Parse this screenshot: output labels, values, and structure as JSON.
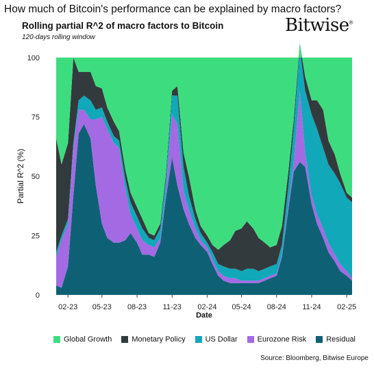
{
  "header": {
    "question": "How much of Bitcoin's performance can be explained by macro factors?",
    "brand": "Bitwise",
    "brand_mark": "®"
  },
  "source": "Source: Bloomberg, Bitwise Europe",
  "chart_data": {
    "type": "area",
    "stacked": true,
    "title": "Rolling partial R^2 of macro factors to Bitcoin",
    "subtitle": "120-days rolling window",
    "xlabel": "Date",
    "ylabel": "Partial R^2 (%)",
    "ylim": [
      0,
      100
    ],
    "yticks": [
      0,
      25,
      50,
      75,
      100
    ],
    "xticks": [
      "02-23",
      "05-23",
      "08-23",
      "11-23",
      "02-24",
      "05-24",
      "08-24",
      "11-24",
      "02-25"
    ],
    "grid": true,
    "legend_position": "bottom",
    "x": [
      "2023-01-01",
      "2023-01-15",
      "2023-02-01",
      "2023-02-15",
      "2023-03-01",
      "2023-03-15",
      "2023-04-01",
      "2023-04-15",
      "2023-05-01",
      "2023-05-15",
      "2023-06-01",
      "2023-06-15",
      "2023-07-01",
      "2023-07-15",
      "2023-08-01",
      "2023-08-15",
      "2023-09-01",
      "2023-09-15",
      "2023-10-01",
      "2023-10-15",
      "2023-11-01",
      "2023-11-15",
      "2023-12-01",
      "2023-12-15",
      "2024-01-01",
      "2024-01-15",
      "2024-02-01",
      "2024-02-15",
      "2024-03-01",
      "2024-03-15",
      "2024-04-01",
      "2024-04-15",
      "2024-05-01",
      "2024-05-15",
      "2024-06-01",
      "2024-06-15",
      "2024-07-01",
      "2024-07-15",
      "2024-08-01",
      "2024-08-15",
      "2024-09-01",
      "2024-09-15",
      "2024-10-01",
      "2024-10-15",
      "2024-11-01",
      "2024-11-15",
      "2024-12-01",
      "2024-12-15",
      "2025-01-01",
      "2025-01-15",
      "2025-02-01",
      "2025-02-15"
    ],
    "series": [
      {
        "name": "Residual",
        "color": "#0e6175",
        "values": [
          4,
          3,
          12,
          42,
          68,
          72,
          66,
          46,
          30,
          24,
          22,
          22,
          23,
          26,
          22,
          17,
          17,
          16,
          22,
          40,
          58,
          46,
          36,
          30,
          24,
          21,
          18,
          13,
          8,
          6,
          5,
          5,
          5,
          5,
          5,
          5,
          6,
          7,
          8,
          16,
          36,
          52,
          56,
          54,
          38,
          30,
          24,
          18,
          14,
          10,
          8,
          6
        ]
      },
      {
        "name": "Eurozone Risk",
        "color": "#a36ae3",
        "values": [
          12,
          20,
          18,
          20,
          10,
          6,
          8,
          28,
          45,
          46,
          42,
          40,
          22,
          8,
          6,
          6,
          4,
          4,
          2,
          2,
          18,
          26,
          8,
          6,
          4,
          2,
          2,
          2,
          2,
          2,
          2,
          2,
          1,
          1,
          1,
          1,
          1,
          1,
          1,
          1,
          2,
          4,
          30,
          6,
          4,
          4,
          4,
          4,
          3,
          3,
          2,
          1
        ]
      },
      {
        "name": "US Dollar",
        "color": "#11a8ba",
        "values": [
          2,
          2,
          2,
          2,
          4,
          6,
          8,
          4,
          4,
          3,
          3,
          3,
          4,
          5,
          5,
          5,
          3,
          3,
          4,
          6,
          8,
          12,
          10,
          6,
          4,
          3,
          2,
          3,
          3,
          4,
          4,
          4,
          4,
          5,
          5,
          4,
          4,
          4,
          4,
          4,
          8,
          14,
          18,
          26,
          34,
          36,
          34,
          33,
          34,
          34,
          31,
          32
        ]
      },
      {
        "name": "Monetary Policy",
        "color": "#333a3d",
        "values": [
          48,
          30,
          32,
          36,
          12,
          10,
          12,
          10,
          8,
          6,
          6,
          4,
          4,
          4,
          4,
          4,
          2,
          2,
          2,
          2,
          2,
          4,
          6,
          8,
          4,
          3,
          3,
          3,
          6,
          9,
          12,
          16,
          18,
          20,
          17,
          14,
          11,
          8,
          8,
          8,
          6,
          4,
          2,
          6,
          6,
          12,
          16,
          10,
          8,
          4,
          2,
          2
        ]
      },
      {
        "name": "Global Growth",
        "color": "#3ddd7f",
        "values": [
          34,
          45,
          36,
          0,
          6,
          6,
          6,
          12,
          13,
          21,
          27,
          31,
          47,
          57,
          63,
          68,
          74,
          75,
          70,
          50,
          14,
          12,
          40,
          50,
          64,
          71,
          75,
          79,
          81,
          79,
          77,
          73,
          72,
          69,
          72,
          76,
          78,
          80,
          79,
          71,
          48,
          26,
          -6,
          8,
          18,
          18,
          22,
          35,
          41,
          49,
          57,
          59
        ]
      }
    ]
  }
}
